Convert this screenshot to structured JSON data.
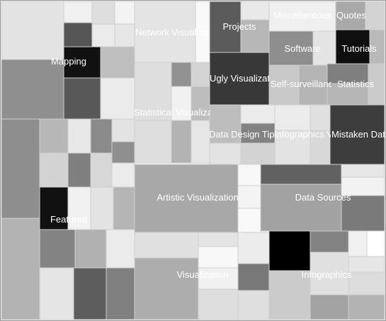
{
  "treemap": {
    "labels": {
      "mapping": "Mapping",
      "network_visualization": "Network Visualization",
      "projects": "Projects",
      "miscellaneous": "Miscellaneous",
      "quotes": "Quotes",
      "software": "Software",
      "tutorials": "Tutorials",
      "ugly_visualization": "Ugly Visualization",
      "self_surveillance": "Self-surveillance",
      "statistics": "Statistics",
      "statistical_visualization": "Statistical Visualization",
      "data_design_tips": "Data Design Tips",
      "infographics_visualization": "Infographics Visualization",
      "mistaken_data": "Mistaken Data",
      "artistic_visualization": "Artistic Visualization",
      "data_sources": "Data Sources",
      "featured": "Featured",
      "visualization": "Visualization",
      "infographics": "Infographics"
    },
    "colors": {
      "stroke": "#cfcfcf",
      "label_text": "#ffffff"
    }
  }
}
